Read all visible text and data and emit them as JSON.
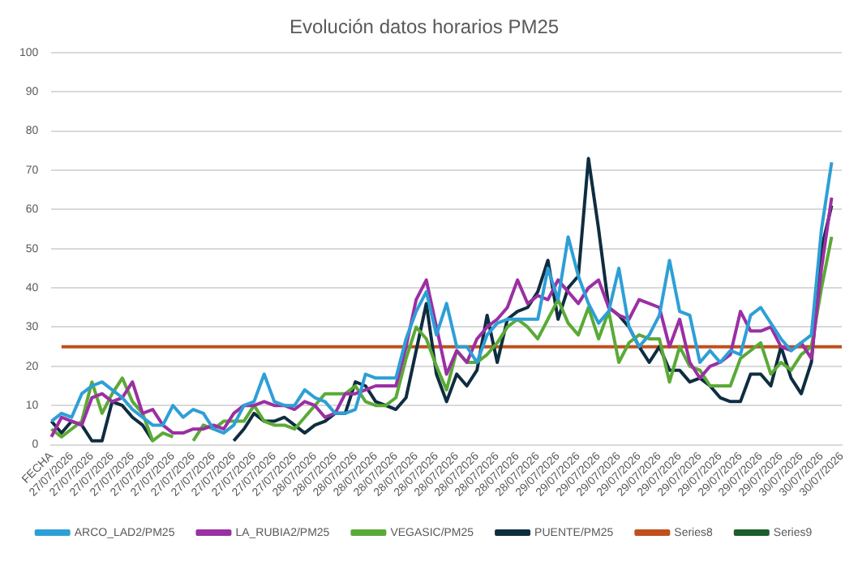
{
  "chart_data": {
    "type": "line",
    "title": "Evolución datos horarios PM25",
    "categories": [
      "FECHA",
      null,
      "27/07/2026",
      null,
      "27/07/2026",
      null,
      "27/07/2026",
      null,
      "27/07/2026",
      null,
      "27/07/2026",
      null,
      "27/07/2026",
      null,
      "27/07/2026",
      null,
      "27/07/2026",
      null,
      "27/07/2026",
      null,
      "27/07/2026",
      null,
      "27/07/2026",
      null,
      "27/07/2026",
      null,
      "28/07/2026",
      null,
      "28/07/2026",
      null,
      "28/07/2026",
      null,
      "28/07/2026",
      null,
      "28/07/2026",
      null,
      "28/07/2026",
      null,
      "28/07/2026",
      null,
      "28/07/2026",
      null,
      "28/07/2026",
      null,
      "28/07/2026",
      null,
      "28/07/2026",
      null,
      "28/07/2026",
      null,
      "29/07/2026",
      null,
      "29/07/2026",
      null,
      "29/07/2026",
      null,
      "29/07/2026",
      null,
      "29/07/2026",
      null,
      "29/07/2026",
      null,
      "29/07/2026",
      null,
      "29/07/2026",
      null,
      "29/07/2026",
      null,
      "29/07/2026",
      null,
      "29/07/2026",
      null,
      "29/07/2026",
      null,
      "30/07/2026",
      null,
      "30/07/2026",
      null,
      "30/07/2026"
    ],
    "series": [
      {
        "name": "ARCO_LAD2/PM25",
        "color": "#2e9fd6",
        "values": [
          6,
          8,
          7,
          13,
          15,
          16,
          14,
          12,
          9,
          7,
          5,
          5,
          10,
          7,
          9,
          8,
          4,
          3,
          5,
          10,
          11,
          18,
          11,
          10,
          10,
          14,
          12,
          11,
          8,
          8,
          9,
          18,
          17,
          17,
          17,
          27,
          34,
          39,
          28,
          36,
          25,
          25,
          21,
          28,
          31,
          32,
          32,
          32,
          32,
          45,
          37,
          53,
          43,
          36,
          31,
          34,
          45,
          30,
          25,
          28,
          33,
          47,
          34,
          33,
          21,
          24,
          21,
          24,
          23,
          33,
          35,
          31,
          27,
          24,
          26,
          28,
          55,
          72,
          null
        ]
      },
      {
        "name": "LA_RUBIA2/PM25",
        "color": "#9b2fa3",
        "values": [
          2,
          7,
          6,
          5,
          12,
          13,
          11,
          12,
          16,
          8,
          9,
          5,
          3,
          3,
          4,
          4,
          5,
          4,
          8,
          10,
          10,
          11,
          10,
          10,
          9,
          11,
          10,
          7,
          8,
          13,
          13,
          14,
          15,
          15,
          15,
          25,
          37,
          42,
          30,
          18,
          24,
          21,
          27,
          30,
          32,
          35,
          42,
          36,
          38,
          37,
          42,
          39,
          36,
          40,
          42,
          35,
          33,
          32,
          37,
          36,
          35,
          25,
          32,
          21,
          17,
          20,
          21,
          23,
          34,
          29,
          29,
          30,
          25,
          24,
          26,
          22,
          45,
          63,
          null
        ]
      },
      {
        "name": "VEGASIC/PM25",
        "color": "#5aaa36",
        "values": [
          4,
          2,
          4,
          6,
          16,
          8,
          13,
          17,
          11,
          8,
          1,
          3,
          2,
          null,
          1,
          5,
          4,
          6,
          6,
          6,
          10,
          6,
          5,
          5,
          4,
          7,
          10,
          13,
          13,
          13,
          15,
          11,
          10,
          10,
          12,
          22,
          30,
          27,
          20,
          14,
          24,
          21,
          21,
          23,
          26,
          30,
          32,
          30,
          27,
          32,
          37,
          31,
          28,
          35,
          27,
          34,
          21,
          26,
          28,
          27,
          27,
          16,
          25,
          20,
          19,
          15,
          15,
          15,
          22,
          24,
          26,
          18,
          21,
          19,
          23,
          25,
          40,
          53,
          null
        ]
      },
      {
        "name": "PUENTE/PM25",
        "color": "#0f2d40",
        "values": [
          6,
          3,
          6,
          5,
          1,
          1,
          11,
          10,
          7,
          5,
          1,
          null,
          null,
          null,
          null,
          null,
          null,
          null,
          1,
          4,
          8,
          6,
          6,
          7,
          5,
          3,
          5,
          6,
          8,
          8,
          16,
          15,
          11,
          10,
          9,
          12,
          24,
          36,
          18,
          11,
          18,
          15,
          19,
          33,
          21,
          32,
          34,
          35,
          39,
          47,
          32,
          40,
          43,
          73,
          55,
          35,
          33,
          30,
          25,
          21,
          25,
          19,
          19,
          16,
          17,
          15,
          12,
          11,
          11,
          18,
          18,
          15,
          25,
          17,
          13,
          21,
          50,
          61,
          null
        ]
      },
      {
        "name": "Series8",
        "color": "#c0501b",
        "values": [
          null,
          25,
          25,
          25,
          25,
          25,
          25,
          25,
          25,
          25,
          25,
          25,
          25,
          25,
          25,
          25,
          25,
          25,
          25,
          25,
          25,
          25,
          25,
          25,
          25,
          25,
          25,
          25,
          25,
          25,
          25,
          25,
          25,
          25,
          25,
          25,
          25,
          25,
          25,
          25,
          25,
          25,
          25,
          25,
          25,
          25,
          25,
          25,
          25,
          25,
          25,
          25,
          25,
          25,
          25,
          25,
          25,
          25,
          25,
          25,
          25,
          25,
          25,
          25,
          25,
          25,
          25,
          25,
          25,
          25,
          25,
          25,
          25,
          25,
          25,
          25,
          25,
          25,
          25
        ]
      },
      {
        "name": "Series9",
        "color": "#1d5e2a",
        "values": [
          null,
          null,
          null,
          null,
          null,
          null,
          null,
          null,
          null,
          null,
          null,
          null,
          null,
          null,
          null,
          null,
          null,
          null,
          null,
          null,
          null,
          null,
          null,
          null,
          null,
          null,
          null,
          null,
          null,
          null,
          null,
          null,
          null,
          null,
          null,
          null,
          null,
          null,
          null,
          null,
          null,
          null,
          null,
          null,
          null,
          null,
          null,
          null,
          null,
          null,
          null,
          null,
          null,
          null,
          null,
          null,
          null,
          null,
          null,
          null,
          null,
          null,
          null,
          null,
          null,
          null,
          null,
          null,
          null,
          null,
          null,
          null,
          null,
          null,
          null,
          null,
          null,
          null,
          null
        ]
      }
    ],
    "ylim": [
      0,
      100
    ],
    "yticks": [
      0,
      10,
      20,
      30,
      40,
      50,
      60,
      70,
      80,
      90,
      100
    ],
    "grid": "y",
    "legend": "bottom",
    "marker": "none",
    "line_style": "solid"
  }
}
